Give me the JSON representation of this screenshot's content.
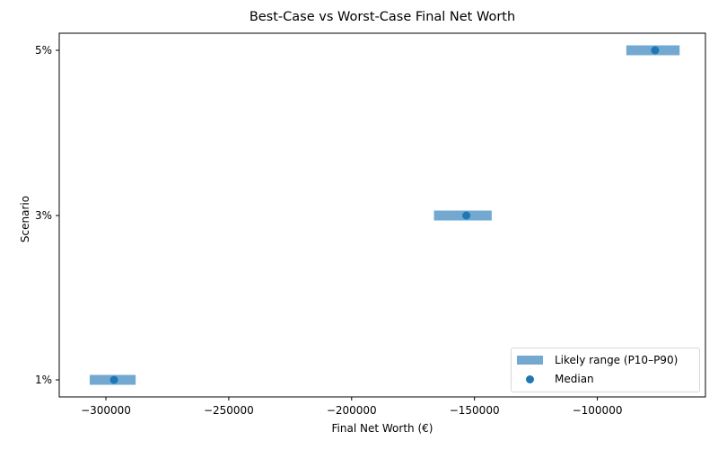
{
  "chart_data": {
    "type": "range-dot",
    "title": "Best-Case vs Worst-Case Final Net Worth",
    "xlabel": "Final Net Worth (€)",
    "ylabel": "Scenario",
    "categories": [
      "1%",
      "3%",
      "5%"
    ],
    "series": [
      {
        "name": "Likely range (P10–P90)",
        "type": "range",
        "low": [
          -306600,
          -166500,
          -88200
        ],
        "high": [
          -287900,
          -143000,
          -66500
        ],
        "color": "#73a9d1"
      },
      {
        "name": "Median",
        "type": "scatter",
        "values": [
          -296700,
          -153300,
          -76500
        ],
        "color": "#1f77b4"
      }
    ],
    "xlim": [
      -319000,
      -56000
    ],
    "xticks": [
      -300000,
      -250000,
      -200000,
      -150000,
      -100000
    ],
    "xtick_labels": [
      "−300000",
      "−250000",
      "−200000",
      "−150000",
      "−100000"
    ],
    "grid": false,
    "legend_position": "lower right"
  },
  "legend": {
    "range_label": "Likely range (P10–P90)",
    "median_label": "Median"
  },
  "colors": {
    "range": "#73a9d1",
    "median": "#1f77b4"
  }
}
